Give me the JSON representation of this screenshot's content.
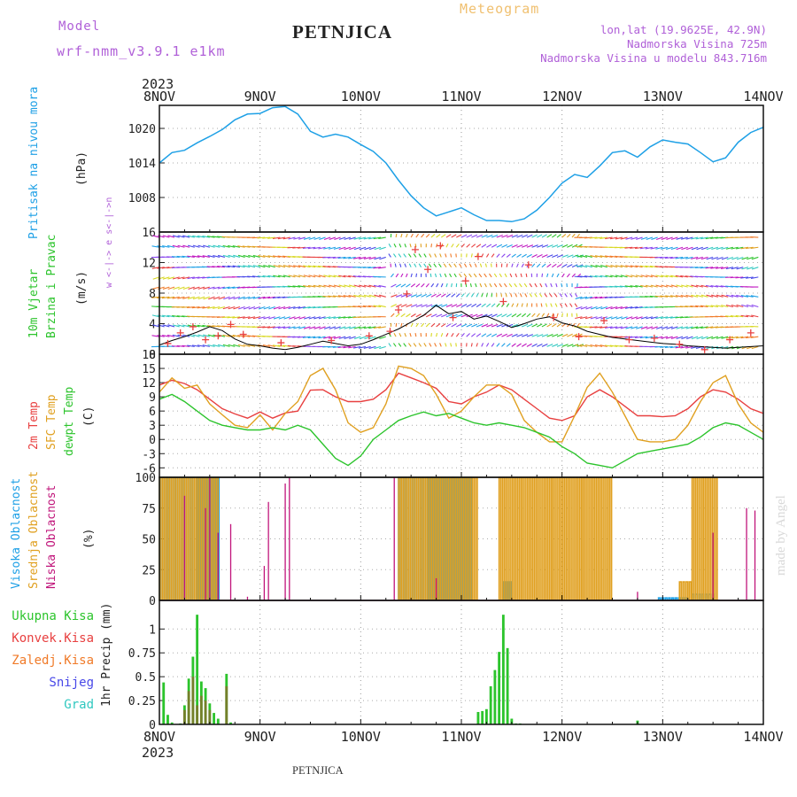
{
  "header": {
    "model_label": "Model",
    "model_name": "wrf-nmm_v3.9.1  e1km",
    "station": "PETNJICA",
    "product": "Meteogram",
    "location": "lon,lat (19.9625E, 42.9N)",
    "altitude": "Nadmorska Visina 725m",
    "model_altitude": "Nadmorska Visina u modelu 843.716m",
    "footer_station": "PETNJICA",
    "watermark": "made by Angel",
    "year_top": "2023",
    "year_bottom": "2023"
  },
  "colors": {
    "pressure": "#1ea0e6",
    "t2m": "#e84040",
    "sfc": "#e0a020",
    "dewpoint": "#2cc42c",
    "high_cloud": "#1ea0e6",
    "mid_cloud": "#e0a020",
    "low_cloud": "#c0147a",
    "precip_total": "#2cc42c",
    "precip_conv": "#e84040",
    "precip_frozen": "#f07a28",
    "snow": "#4848e8",
    "hail": "#30c8c0",
    "label_purple": "#b060d8",
    "wind_speed_line": "#000000",
    "gust_marker": "#e84040"
  },
  "chart_data": [
    {
      "type": "line",
      "id": "pressure",
      "ylabel": [
        "Pritisak na nivou mora",
        "(hPa)"
      ],
      "x_ticks": [
        "8NOV",
        "9NOV",
        "10NOV",
        "11NOV",
        "12NOV",
        "13NOV",
        "14NOV"
      ],
      "ylim": [
        1002,
        1024
      ],
      "yticks": [
        1008,
        1014,
        1020
      ],
      "x_unit": "hours since 8NOV 00",
      "series": [
        {
          "x": [
            0,
            3,
            6,
            9,
            12,
            15,
            18,
            21,
            24,
            27,
            30,
            33,
            36,
            39,
            42,
            45,
            48,
            51,
            54,
            57,
            60,
            63,
            66,
            69,
            72,
            75,
            78,
            81,
            84,
            87,
            90,
            93,
            96,
            99,
            102,
            105,
            108,
            111,
            114,
            117,
            120,
            123,
            126,
            129,
            132,
            135,
            138,
            141,
            144
          ],
          "values": [
            1014,
            1015.8,
            1016.2,
            1017.5,
            1018.6,
            1019.8,
            1021.5,
            1022.5,
            1022.6,
            1023.6,
            1023.8,
            1022.5,
            1019.5,
            1018.5,
            1019,
            1018.5,
            1017.2,
            1016,
            1014,
            1011,
            1008.3,
            1006.2,
            1004.8,
            1005.5,
            1006.2,
            1005,
            1004,
            1004,
            1003.8,
            1004.3,
            1005.8,
            1008,
            1010.5,
            1012,
            1011.5,
            1013.5,
            1015.8,
            1016.1,
            1015,
            1016.8,
            1018,
            1017.6,
            1017.3,
            1015.8,
            1014.2,
            1014.9,
            1017.6,
            1019.3,
            1020.2
          ]
        }
      ]
    },
    {
      "type": "scatter",
      "id": "wind",
      "ylabel": [
        "10m Vjetar",
        "Brzina i Pravac",
        "(m/s)"
      ],
      "compass": "w <-|-> e   s<-|->n",
      "ylim": [
        0,
        16
      ],
      "yticks": [
        0,
        4,
        8,
        12,
        16
      ],
      "series": [
        {
          "name": "speed",
          "x": [
            0,
            3,
            6,
            9,
            12,
            15,
            18,
            21,
            24,
            27,
            30,
            33,
            36,
            39,
            42,
            45,
            48,
            51,
            54,
            57,
            60,
            63,
            66,
            69,
            72,
            75,
            78,
            81,
            84,
            87,
            90,
            93,
            96,
            99,
            102,
            105,
            108,
            111,
            114,
            117,
            120,
            123,
            126,
            129,
            132,
            135,
            138,
            141,
            144
          ],
          "values": [
            1.2,
            1.8,
            2.3,
            2.9,
            3.6,
            3.1,
            2.0,
            1.3,
            1.1,
            0.8,
            0.6,
            0.9,
            1.3,
            1.7,
            1.4,
            1.1,
            1.3,
            1.9,
            2.6,
            3.3,
            4.2,
            5.1,
            6.4,
            5.3,
            5.6,
            4.6,
            5.0,
            4.3,
            3.5,
            4.0,
            4.6,
            4.9,
            4.1,
            3.7,
            3.0,
            2.6,
            2.2,
            2.0,
            1.8,
            1.6,
            1.4,
            1.3,
            1.1,
            1.0,
            0.9,
            0.8,
            0.9,
            1.0,
            1.1
          ]
        },
        {
          "name": "gust",
          "x": [
            2,
            5,
            8,
            11,
            14,
            17,
            20,
            29,
            41,
            50,
            55,
            57,
            59,
            61,
            64,
            67,
            70,
            73,
            76,
            82,
            88,
            94,
            100,
            106,
            112,
            118,
            124,
            130,
            136,
            141
          ],
          "values": [
            1.4,
            2.8,
            3.6,
            1.9,
            2.4,
            3.9,
            2.6,
            1.5,
            1.8,
            2.4,
            3.0,
            5.8,
            7.9,
            13.7,
            11.1,
            14.2,
            4.8,
            9.6,
            12.8,
            6.9,
            11.7,
            4.8,
            2.3,
            4.4,
            1.9,
            2.1,
            1.3,
            0.6,
            1.9,
            2.8
          ]
        }
      ]
    },
    {
      "type": "line",
      "id": "temperature",
      "ylabel": [
        "2m Temp",
        "SFC Temp",
        "dewpt Temp",
        "(C)"
      ],
      "ylim": [
        -8,
        18
      ],
      "yticks": [
        -6,
        -3,
        0,
        3,
        6,
        9,
        12,
        15,
        18
      ],
      "series": [
        {
          "name": "2m Temp",
          "x": [
            0,
            3,
            6,
            9,
            12,
            15,
            18,
            21,
            24,
            27,
            30,
            33,
            36,
            39,
            42,
            45,
            48,
            51,
            54,
            57,
            60,
            63,
            66,
            69,
            72,
            75,
            78,
            81,
            84,
            87,
            90,
            93,
            96,
            99,
            102,
            105,
            108,
            111,
            114,
            117,
            120,
            123,
            126,
            129,
            132,
            135,
            138,
            141,
            144
          ],
          "values": [
            11.5,
            12.5,
            11.8,
            10.5,
            8.5,
            6.5,
            5.4,
            4.5,
            5.8,
            4.5,
            5.6,
            6.0,
            10.4,
            10.5,
            9.0,
            8.0,
            8.0,
            8.5,
            10.5,
            14.0,
            13.0,
            12.0,
            10.8,
            8.0,
            7.5,
            9.0,
            10.0,
            11.5,
            10.5,
            8.5,
            6.5,
            4.5,
            4.0,
            5.0,
            9.0,
            10.5,
            9.0,
            7.0,
            5.0,
            5.0,
            4.8,
            5.0,
            6.5,
            9.0,
            10.5,
            10.0,
            8.5,
            6.5,
            5.5
          ]
        },
        {
          "name": "SFC Temp",
          "x": [
            0,
            3,
            6,
            9,
            12,
            15,
            18,
            21,
            24,
            27,
            30,
            33,
            36,
            39,
            42,
            45,
            48,
            51,
            54,
            57,
            60,
            63,
            66,
            69,
            72,
            75,
            78,
            81,
            84,
            87,
            90,
            93,
            96,
            99,
            102,
            105,
            108,
            111,
            114,
            117,
            120,
            123,
            126,
            129,
            132,
            135,
            138,
            141,
            144
          ],
          "values": [
            10.0,
            13.0,
            10.8,
            11.5,
            7.5,
            5.2,
            3.0,
            2.5,
            5.2,
            2.0,
            5.5,
            8.0,
            13.5,
            15.0,
            10.5,
            3.5,
            1.5,
            2.5,
            7.5,
            15.5,
            15.0,
            13.5,
            9.5,
            4.5,
            6.0,
            9.0,
            11.5,
            11.5,
            9.5,
            4.0,
            1.5,
            -0.5,
            -0.5,
            5.0,
            11.0,
            14.0,
            10.0,
            5.0,
            0.0,
            -0.5,
            -0.5,
            0.0,
            3.0,
            8.0,
            12.0,
            13.5,
            7.5,
            3.5,
            1.5
          ]
        },
        {
          "name": "dewpt Temp",
          "x": [
            0,
            3,
            6,
            9,
            12,
            15,
            18,
            21,
            24,
            27,
            30,
            33,
            36,
            39,
            42,
            45,
            48,
            51,
            54,
            57,
            60,
            63,
            66,
            69,
            72,
            75,
            78,
            81,
            84,
            87,
            90,
            93,
            96,
            99,
            102,
            105,
            108,
            111,
            114,
            117,
            120,
            123,
            126,
            129,
            132,
            135,
            138,
            141,
            144
          ],
          "values": [
            8.5,
            9.5,
            8.0,
            6.0,
            4.0,
            3.0,
            2.5,
            2.0,
            2.0,
            2.5,
            2.0,
            3.0,
            2.0,
            -1.0,
            -4.0,
            -5.5,
            -3.5,
            0.0,
            2.0,
            4.0,
            5.0,
            5.8,
            5.0,
            5.5,
            4.5,
            3.5,
            3.0,
            3.5,
            3.0,
            2.5,
            1.5,
            0.5,
            -1.5,
            -3.0,
            -5.0,
            -5.5,
            -6.0,
            -4.5,
            -3.0,
            -2.5,
            -2.0,
            -1.5,
            -1.0,
            0.5,
            2.5,
            3.5,
            3.0,
            1.5,
            0.0
          ]
        }
      ]
    },
    {
      "type": "bar",
      "id": "clouds",
      "ylabel": [
        "Visoka Oblacnost",
        "Srednja Oblacnost",
        "Niska Oblacnost",
        "(%)"
      ],
      "ylim": [
        0,
        100
      ],
      "yticks": [
        0,
        25,
        50,
        75,
        100
      ],
      "series": [
        {
          "name": "Visoka Oblacnost",
          "segments": [
            [
              0,
              8,
              100
            ],
            [
              9,
              14,
              100
            ],
            [
              57,
              64,
              100
            ],
            [
              64,
              70,
              100
            ],
            [
              70,
              74,
              100
            ],
            [
              82,
              84,
              15
            ],
            [
              119,
              126,
              2
            ],
            [
              127,
              132,
              5
            ]
          ]
        },
        {
          "name": "Srednja Oblacnost",
          "segments": [
            [
              0,
              14,
              100
            ],
            [
              57,
              76,
              100
            ],
            [
              81,
              108,
              100
            ],
            [
              124,
              127,
              15
            ],
            [
              127,
              133,
              100
            ]
          ]
        },
        {
          "name": "Niska Oblacnost",
          "spikes": [
            [
              6,
              85
            ],
            [
              11,
              75
            ],
            [
              12,
              100
            ],
            [
              14,
              55
            ],
            [
              17,
              62
            ],
            [
              21,
              3
            ],
            [
              25,
              28
            ],
            [
              26,
              80
            ],
            [
              30,
              95
            ],
            [
              31,
              100
            ],
            [
              56,
              100
            ],
            [
              66,
              18
            ],
            [
              114,
              7
            ],
            [
              132,
              55
            ],
            [
              140,
              75
            ],
            [
              142,
              73
            ]
          ]
        }
      ]
    },
    {
      "type": "bar",
      "id": "precip",
      "ylabel": [
        "1hr Precip (mm)"
      ],
      "legend": [
        "Ukupna Kisa",
        "Konvek.Kisa",
        "Zaledj.Kisa",
        "Snijeg",
        "Grad"
      ],
      "ylim": [
        0,
        1.3
      ],
      "yticks": [
        0,
        0.25,
        0.5,
        0.75,
        1
      ],
      "series": [
        {
          "name": "Ukupna Kisa",
          "x": [
            1,
            2,
            3,
            5,
            6,
            7,
            8,
            9,
            10,
            11,
            12,
            13,
            14,
            16,
            17,
            76,
            77,
            78,
            79,
            80,
            81,
            82,
            83,
            84,
            85,
            86,
            114
          ],
          "values": [
            0.44,
            0.1,
            0.02,
            0.01,
            0.2,
            0.48,
            0.71,
            1.15,
            0.45,
            0.38,
            0.22,
            0.12,
            0.06,
            0.53,
            0.02,
            0.13,
            0.14,
            0.16,
            0.4,
            0.57,
            0.76,
            1.15,
            0.8,
            0.06,
            0.01,
            0.01,
            0.04
          ]
        },
        {
          "name": "Konvek.Kisa",
          "x": [
            6,
            7,
            8,
            9,
            10,
            11,
            12,
            16
          ],
          "values": [
            0.15,
            0.35,
            0.5,
            0.2,
            0.3,
            0.25,
            0.15,
            0.4
          ]
        }
      ]
    }
  ]
}
